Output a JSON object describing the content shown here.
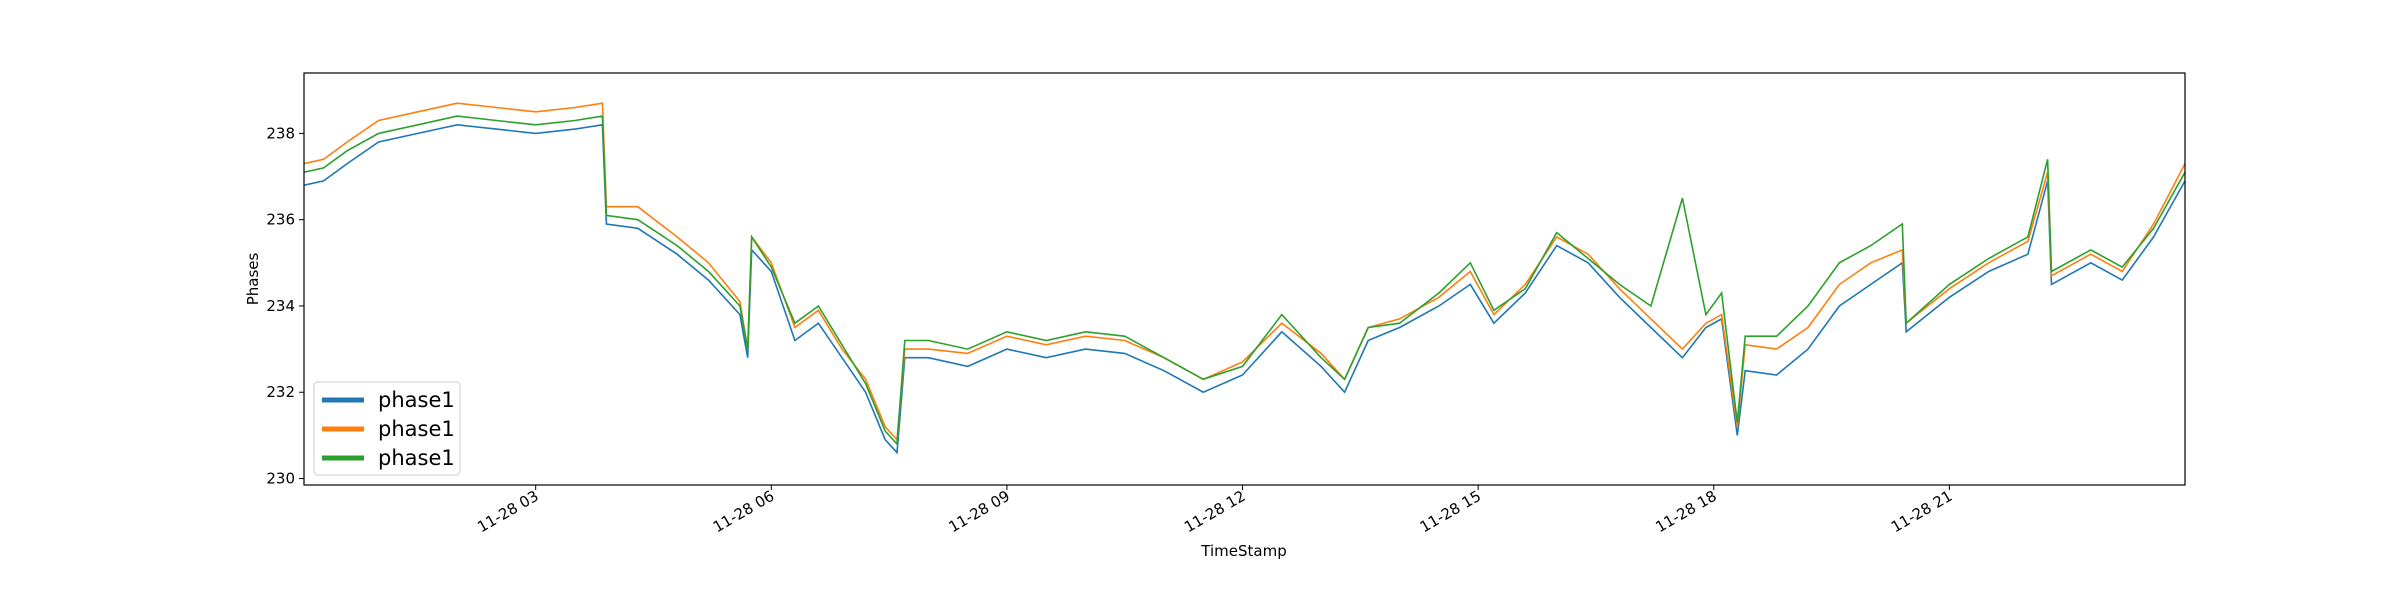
{
  "chart_data": {
    "type": "line",
    "xlabel": "TimeStamp",
    "ylabel": "Phases",
    "x": [
      0.05,
      0.3,
      0.6,
      1,
      1.5,
      2,
      2.5,
      3,
      3.5,
      3.85,
      3.9,
      4.3,
      4.8,
      5.2,
      5.6,
      5.7,
      5.75,
      6,
      6.3,
      6.6,
      6.9,
      7.2,
      7.45,
      7.6,
      7.7,
      8,
      8.5,
      9,
      9.5,
      10,
      10.5,
      11,
      11.5,
      12,
      12.5,
      13,
      13.3,
      13.6,
      14,
      14.5,
      14.9,
      15.2,
      15.6,
      16,
      16.4,
      16.8,
      17.2,
      17.6,
      17.9,
      18.1,
      18.3,
      18.4,
      18.8,
      19.2,
      19.6,
      20,
      20.4,
      20.45,
      21,
      21.5,
      22,
      22.25,
      22.3,
      22.8,
      23.2,
      23.6,
      24
    ],
    "series": [
      {
        "name": "phase1",
        "color": "#1f77b4",
        "values": [
          236.8,
          236.9,
          237.3,
          237.8,
          238.0,
          238.2,
          238.1,
          238.0,
          238.1,
          238.2,
          235.9,
          235.8,
          235.2,
          234.6,
          233.8,
          232.8,
          235.3,
          234.8,
          233.2,
          233.6,
          232.8,
          232.0,
          230.9,
          230.6,
          232.8,
          232.8,
          232.6,
          233.0,
          232.8,
          233.0,
          232.9,
          232.5,
          232.0,
          232.4,
          233.4,
          232.6,
          232.0,
          233.2,
          233.5,
          234.0,
          234.5,
          233.6,
          234.3,
          235.4,
          235.0,
          234.2,
          233.5,
          232.8,
          233.5,
          233.7,
          231.0,
          232.5,
          232.4,
          233.0,
          234.0,
          234.5,
          235.0,
          233.4,
          234.2,
          234.8,
          235.2,
          236.9,
          234.5,
          235.0,
          234.6,
          235.6,
          236.9
        ]
      },
      {
        "name": "phase1",
        "color": "#ff7f0e",
        "values": [
          237.3,
          237.4,
          237.8,
          238.3,
          238.5,
          238.7,
          238.6,
          238.5,
          238.6,
          238.7,
          236.3,
          236.3,
          235.6,
          235.0,
          234.1,
          233.0,
          235.6,
          235.0,
          233.5,
          233.9,
          233.0,
          232.3,
          231.2,
          230.9,
          233.0,
          233.0,
          232.9,
          233.3,
          233.1,
          233.3,
          233.2,
          232.8,
          232.3,
          232.7,
          233.6,
          232.9,
          232.3,
          233.5,
          233.7,
          234.2,
          234.8,
          233.8,
          234.5,
          235.6,
          235.2,
          234.4,
          233.7,
          233.0,
          233.6,
          233.8,
          231.2,
          233.1,
          233.0,
          233.5,
          234.5,
          235.0,
          235.3,
          233.6,
          234.4,
          235.0,
          235.5,
          237.1,
          234.7,
          235.2,
          234.8,
          235.9,
          237.3
        ]
      },
      {
        "name": "phase1",
        "color": "#2ca02c",
        "values": [
          237.1,
          237.2,
          237.6,
          238.0,
          238.2,
          238.4,
          238.3,
          238.2,
          238.3,
          238.4,
          236.1,
          236.0,
          235.4,
          234.8,
          234.0,
          233.0,
          235.6,
          234.9,
          233.6,
          234.0,
          233.1,
          232.2,
          231.1,
          230.8,
          233.2,
          233.2,
          233.0,
          233.4,
          233.2,
          233.4,
          233.3,
          232.8,
          232.3,
          232.6,
          233.8,
          232.8,
          232.3,
          233.5,
          233.6,
          234.3,
          235.0,
          233.9,
          234.4,
          235.7,
          235.1,
          234.5,
          234.0,
          236.5,
          233.8,
          234.3,
          231.3,
          233.3,
          233.3,
          234.0,
          235.0,
          235.4,
          235.9,
          233.6,
          234.5,
          235.1,
          235.6,
          237.4,
          234.8,
          235.3,
          234.9,
          235.8,
          237.1
        ]
      }
    ],
    "xlim": [
      0.05,
      24
    ],
    "xticks": [
      {
        "value": 3,
        "label": "11-28 03"
      },
      {
        "value": 6,
        "label": "11-28 06"
      },
      {
        "value": 9,
        "label": "11-28 09"
      },
      {
        "value": 12,
        "label": "11-28 12"
      },
      {
        "value": 15,
        "label": "11-28 15"
      },
      {
        "value": 18,
        "label": "11-28 18"
      },
      {
        "value": 21,
        "label": "11-28 21"
      }
    ],
    "ylim": [
      229.85,
      239.4
    ],
    "yticks": [
      230,
      232,
      234,
      236,
      238
    ],
    "legend": "lower left"
  }
}
